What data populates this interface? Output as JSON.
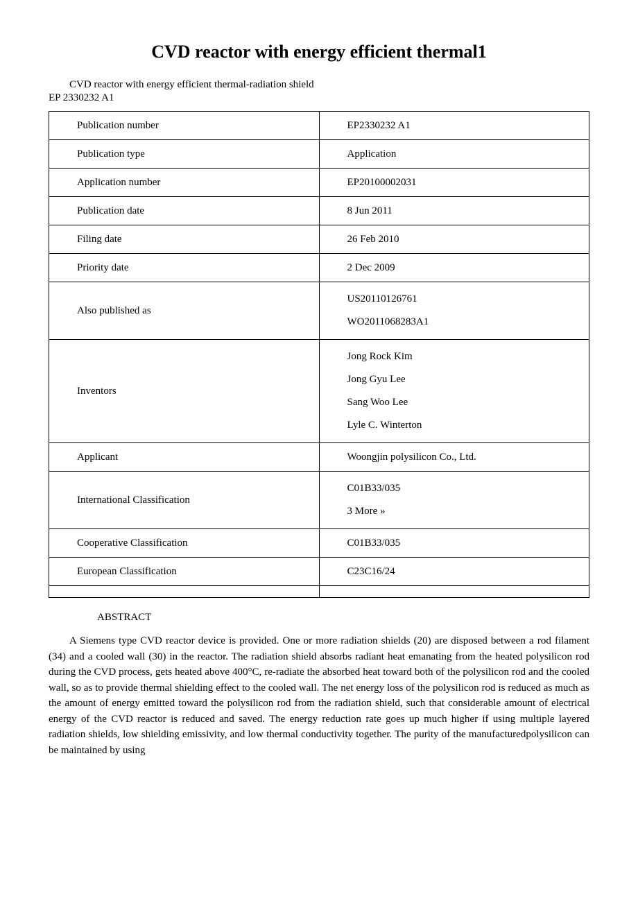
{
  "title": "CVD reactor with energy efficient thermal1",
  "subtitle": "CVD reactor with energy efficient thermal-radiation shield",
  "ep_number": "EP 2330232 A1",
  "table": {
    "rows": [
      {
        "label": "Publication number",
        "value": "EP2330232 A1"
      },
      {
        "label": "Publication type",
        "value": "Application"
      },
      {
        "label": "Application number",
        "value": "EP20100002031"
      },
      {
        "label": "Publication date",
        "value": "8 Jun 2011"
      },
      {
        "label": "Filing date",
        "value": "26 Feb 2010"
      },
      {
        "label": "Priority date",
        "value": "2 Dec 2009"
      },
      {
        "label": "Also published as",
        "value": "US20110126761\nWO2011068283A1"
      },
      {
        "label": "Inventors",
        "value": "Jong Rock Kim\nJong Gyu Lee\nSang Woo Lee\nLyle C. Winterton"
      },
      {
        "label": "Applicant",
        "value": "Woongjin polysilicon Co., Ltd."
      },
      {
        "label": "International Classification",
        "value": "C01B33/035\n3 More »"
      },
      {
        "label": "Cooperative Classification",
        "value": "C01B33/035"
      },
      {
        "label": "European Classification",
        "value": "C23C16/24"
      },
      {
        "label": "",
        "value": ""
      }
    ]
  },
  "abstract": {
    "heading": "ABSTRACT",
    "body": "A Siemens type CVD reactor device is provided. One or more radiation shields (20) are disposed between a rod filament (34) and a cooled wall (30) in the reactor. The radiation shield absorbs radiant heat emanating from the heated polysilicon rod during the CVD process, gets heated above 400°C, re-radiate the absorbed heat toward both of the polysilicon rod and the cooled wall, so as to provide thermal shielding effect to the cooled wall. The net energy loss of the polysilicon rod is reduced as much as the amount of energy emitted toward the polysilicon rod from the radiation shield, such that considerable amount of electrical energy of the CVD reactor is reduced and saved. The energy reduction rate goes up much higher if using multiple layered radiation shields, low shielding emissivity, and low thermal conductivity together. The purity of the manufacturedpolysilicon can be maintained by using"
  }
}
